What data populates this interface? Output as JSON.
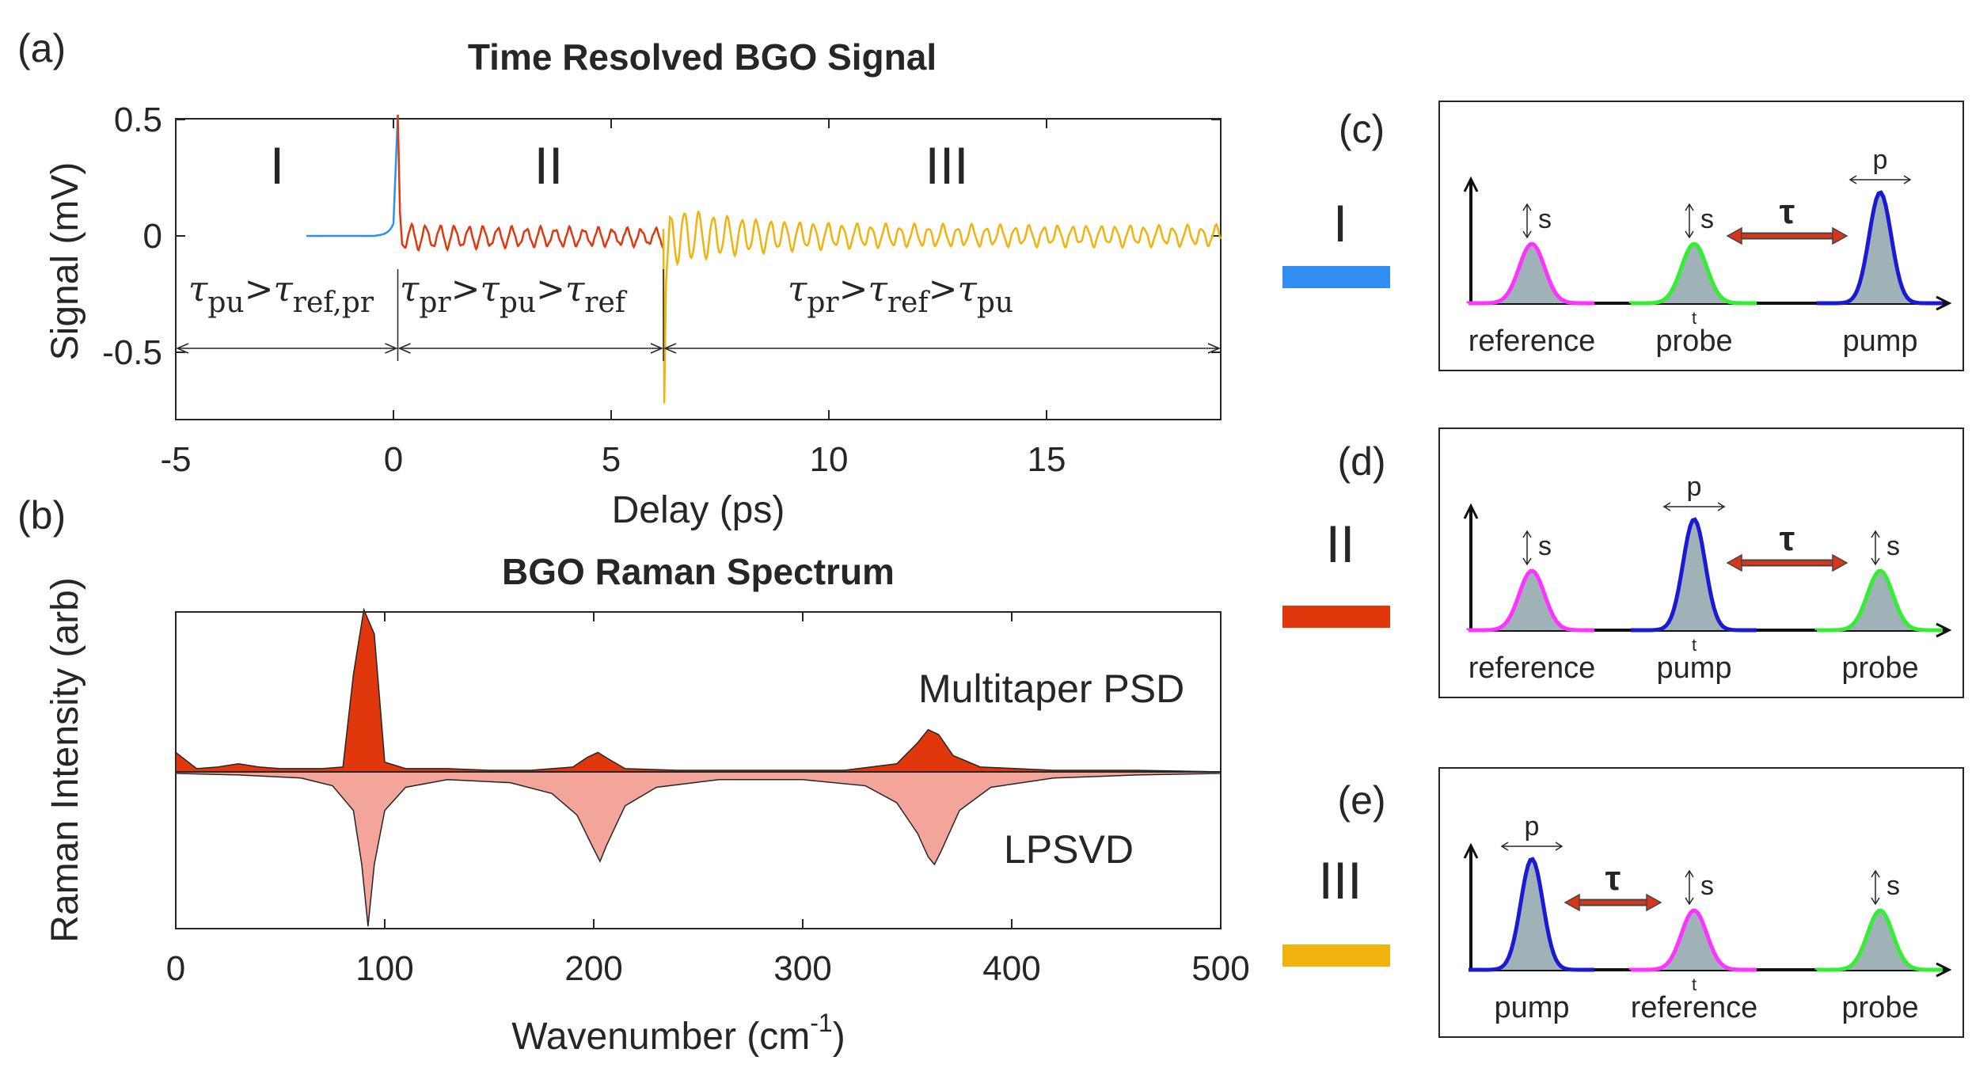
{
  "panel_labels": {
    "a": "(a)",
    "b": "(b)",
    "c": "(c)",
    "d": "(d)",
    "e": "(e)"
  },
  "colors": {
    "region_I": "#2f8ef0",
    "region_II": "#e0380c",
    "region_III": "#f0b20c",
    "psd_fill": "#e0380c",
    "lpsvd_fill": "#f4a59a",
    "reference": "#ff33ff",
    "probe": "#33ee33",
    "pump": "#1a1ad6",
    "pulse_fill": "#9fb2b8",
    "tau_arrow": "#d8361a"
  },
  "chart_data": [
    {
      "type": "line",
      "title": "Time Resolved BGO Signal",
      "xlabel": "Delay (ps)",
      "ylabel": "Signal (mV)",
      "xlim": [
        -5,
        19
      ],
      "ylim": [
        -0.75,
        0.52
      ],
      "xticks": [
        "-5",
        "0",
        "5",
        "10",
        "15"
      ],
      "yticks": [
        "0.5",
        "0",
        "-0.5"
      ],
      "regions": [
        {
          "name": "I",
          "range": [
            -2,
            0.1
          ],
          "color": "#2f8ef0",
          "description_samples": [
            [
              -2,
              0.0
            ],
            [
              -1,
              0.0
            ],
            [
              -0.3,
              0.02
            ],
            [
              0,
              0.08
            ],
            [
              0.1,
              0.52
            ]
          ]
        },
        {
          "name": "II",
          "range": [
            0.1,
            6.2
          ],
          "color": "#e0380c",
          "peak": [
            0.1,
            0.52
          ],
          "oscillation_amplitude_mV": 0.05
        },
        {
          "name": "III",
          "range": [
            6.2,
            19
          ],
          "color": "#f0b20c",
          "dip": [
            6.2,
            -0.72
          ],
          "oscillation_amplitude_mV": 0.05
        }
      ],
      "region_labels": [
        "I",
        "II",
        "III"
      ],
      "conditions": [
        {
          "lhs": "τ",
          "lhs_sub": "pu",
          "rest": [
            {
              "op": ">",
              "sym": "τ",
              "sub": "ref,pr"
            }
          ],
          "range": [
            -5,
            0.1
          ]
        },
        {
          "lhs": "τ",
          "lhs_sub": "pr",
          "rest": [
            {
              "op": ">",
              "sym": "τ",
              "sub": "pu"
            },
            {
              "op": ">",
              "sym": "τ",
              "sub": "ref"
            }
          ],
          "range": [
            0.1,
            6.2
          ]
        },
        {
          "lhs": "τ",
          "lhs_sub": "pr",
          "rest": [
            {
              "op": ">",
              "sym": "τ",
              "sub": "ref"
            },
            {
              "op": ">",
              "sym": "τ",
              "sub": "pu"
            }
          ],
          "range": [
            6.2,
            19
          ]
        }
      ]
    },
    {
      "type": "area",
      "title": "BGO Raman Spectrum",
      "xlabel": "Wavenumber (cm",
      "xlabel_sup": "-1",
      "xlabel_end": ")",
      "ylabel": "Raman Intensity (arb)",
      "xlim": [
        0,
        500
      ],
      "xticks": [
        "0",
        "100",
        "200",
        "300",
        "400",
        "500"
      ],
      "series": [
        {
          "name": "Multitaper PSD",
          "x": [
            0,
            10,
            20,
            30,
            40,
            50,
            60,
            70,
            80,
            85,
            90,
            95,
            100,
            110,
            130,
            150,
            170,
            190,
            197,
            202,
            207,
            215,
            240,
            280,
            320,
            345,
            355,
            360,
            365,
            372,
            385,
            420,
            460,
            500
          ],
          "y": [
            0.12,
            0.02,
            0.03,
            0.05,
            0.03,
            0.02,
            0.02,
            0.02,
            0.03,
            0.6,
            1.0,
            0.85,
            0.06,
            0.02,
            0.02,
            0.01,
            0.01,
            0.03,
            0.09,
            0.12,
            0.08,
            0.02,
            0.01,
            0.01,
            0.01,
            0.05,
            0.18,
            0.26,
            0.23,
            0.1,
            0.03,
            0.01,
            0.01,
            0.0
          ]
        },
        {
          "name": "LPSVD",
          "x": [
            0,
            30,
            60,
            75,
            85,
            89,
            92,
            95,
            100,
            110,
            130,
            160,
            180,
            192,
            200,
            203,
            206,
            215,
            230,
            260,
            300,
            330,
            345,
            355,
            360,
            363,
            366,
            375,
            390,
            420,
            460,
            500
          ],
          "y": [
            0.01,
            0.02,
            0.04,
            0.09,
            0.25,
            0.6,
            1.0,
            0.6,
            0.25,
            0.1,
            0.05,
            0.07,
            0.14,
            0.28,
            0.5,
            0.58,
            0.48,
            0.22,
            0.1,
            0.05,
            0.05,
            0.09,
            0.2,
            0.4,
            0.55,
            0.6,
            0.52,
            0.25,
            0.1,
            0.04,
            0.02,
            0.01
          ]
        }
      ]
    }
  ],
  "diagrams": [
    {
      "letter": "(c)",
      "row_label": "I",
      "positions": [
        "reference",
        "probe",
        "pump"
      ],
      "pulses": [
        "reference",
        "probe",
        "pump"
      ],
      "width_marks": [
        "s",
        "s",
        "p"
      ],
      "tau_between": [
        1,
        2
      ],
      "t_under": 1,
      "tau": "τ"
    },
    {
      "letter": "(d)",
      "row_label": "II",
      "positions": [
        "reference",
        "pump",
        "probe"
      ],
      "pulses": [
        "reference",
        "pump",
        "probe"
      ],
      "width_marks": [
        "s",
        "p",
        "s"
      ],
      "tau_between": [
        1,
        2
      ],
      "t_under": 1,
      "tau": "τ"
    },
    {
      "letter": "(e)",
      "row_label": "III",
      "positions": [
        "pump",
        "reference",
        "probe"
      ],
      "pulses": [
        "pump",
        "reference",
        "probe"
      ],
      "width_marks": [
        "p",
        "s",
        "s"
      ],
      "tau_between": [
        0,
        1
      ],
      "t_under": 1,
      "tau": "τ"
    }
  ],
  "diagram_text": {
    "t": "t",
    "s": "s",
    "p": "p"
  }
}
